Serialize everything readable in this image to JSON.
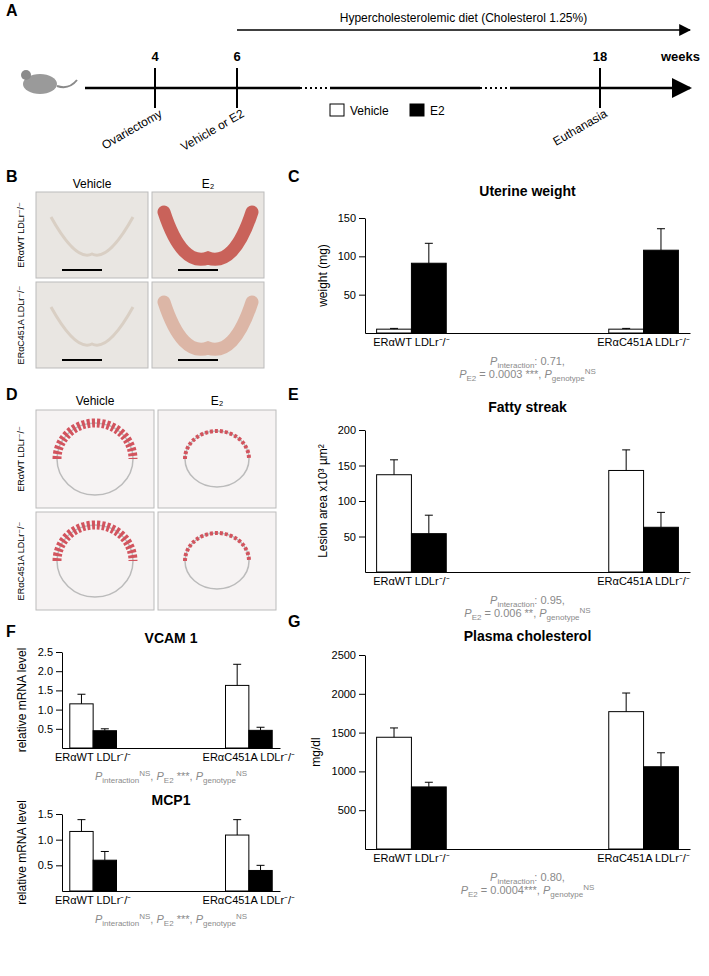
{
  "panels": [
    "A",
    "B",
    "C",
    "D",
    "E",
    "F",
    "G"
  ],
  "timeline": {
    "diet": {
      "label": "Hypercholesterolemic diet (Cholesterol 1.25%)",
      "start_week": 6
    },
    "unit": "weeks",
    "events": [
      {
        "week": 4,
        "label": "Ovariectomy"
      },
      {
        "week": 6,
        "label": "Vehicle or E2"
      },
      {
        "week": 18,
        "label": "Euthanasia"
      }
    ],
    "legend": [
      {
        "label": "Vehicle",
        "color": "#ffffff"
      },
      {
        "label": "E2",
        "color": "#000000"
      }
    ]
  },
  "uterus_photos": {
    "columns": [
      "Vehicle",
      "E₂"
    ],
    "rows": [
      "ERαWT LDLr⁻/⁻",
      "ERαC451A LDLr⁻/⁻"
    ]
  },
  "lesion_sections": {
    "columns": [
      "Vehicle",
      "E₂"
    ],
    "rows": [
      "ERαWT LDLr⁻/⁻",
      "ERαC451A LDLr⁻/⁻"
    ]
  },
  "chart_data": [
    {
      "type": "bar",
      "title": "Uterine weight",
      "y_label": "weight (mg)",
      "categories": [
        "ERαWT LDLr⁻/⁻",
        "ERαC451A LDLr⁻/⁻"
      ],
      "series": [
        {
          "color": "#ffffff",
          "values": [
            5,
            5
          ],
          "errors": [
            1,
            1
          ]
        },
        {
          "color": "#000000",
          "values": [
            91,
            108
          ],
          "errors": [
            26,
            28
          ]
        }
      ],
      "ylim": [
        0,
        150
      ],
      "yticks": [
        50,
        100,
        150
      ],
      "stats": [
        [
          {
            "symbol": "P",
            "sub": "interaction",
            "text": ": 0.71,"
          }
        ],
        [
          {
            "symbol": "P",
            "sub": "E2",
            "text": " = 0.0003 ***, "
          },
          {
            "symbol": "P",
            "sub": "genotype",
            "sup": "NS"
          }
        ]
      ]
    },
    {
      "type": "bar",
      "title": "Fatty streak",
      "y_label": "Lesion area x10³ µm²",
      "categories": [
        "ERαWT LDLr⁻/⁻",
        "ERαC451A LDLr⁻/⁻"
      ],
      "series": [
        {
          "color": "#ffffff",
          "values": [
            137,
            143
          ],
          "errors": [
            21,
            29
          ]
        },
        {
          "color": "#000000",
          "values": [
            54,
            63
          ],
          "errors": [
            26,
            21
          ]
        }
      ],
      "ylim": [
        0,
        200
      ],
      "yticks": [
        50,
        100,
        150,
        200
      ],
      "stats": [
        [
          {
            "symbol": "P",
            "sub": "interaction",
            "text": ": 0.95,"
          }
        ],
        [
          {
            "symbol": "P",
            "sub": "E2",
            "text": " = 0.006 **, "
          },
          {
            "symbol": "P",
            "sub": "genotype",
            "sup": "NS"
          }
        ]
      ]
    },
    {
      "type": "bar",
      "title": "VCAM 1",
      "y_label": "relative mRNA level",
      "categories": [
        "ERαWT LDLr⁻/⁻",
        "ERαC451A LDLr⁻/⁻"
      ],
      "series": [
        {
          "color": "#ffffff",
          "values": [
            1.15,
            1.63
          ],
          "errors": [
            0.25,
            0.55
          ]
        },
        {
          "color": "#000000",
          "values": [
            0.45,
            0.46
          ],
          "errors": [
            0.05,
            0.08
          ]
        }
      ],
      "ylim": [
        0,
        2.5
      ],
      "yticks": [
        0.5,
        {
          "value": 1,
          "label": "1.0"
        },
        1.5,
        {
          "value": 2,
          "label": "2.0"
        },
        2.5
      ],
      "stats": [
        [
          {
            "symbol": "P",
            "sub": "interaction",
            "sup": "NS",
            "text": ", "
          },
          {
            "symbol": "P",
            "sub": "E2",
            "text": " ***, "
          },
          {
            "symbol": "P",
            "sub": "genotype",
            "sup": "NS"
          }
        ]
      ]
    },
    {
      "type": "bar",
      "title": "MCP1",
      "y_label": "relative mRNA level",
      "categories": [
        "ERαWT LDLr⁻/⁻",
        "ERαC451A LDLr⁻/⁻"
      ],
      "series": [
        {
          "color": "#ffffff",
          "values": [
            1.16,
            1.09
          ],
          "errors": [
            0.23,
            0.3
          ]
        },
        {
          "color": "#000000",
          "values": [
            0.6,
            0.4
          ],
          "errors": [
            0.17,
            0.1
          ]
        }
      ],
      "ylim": [
        0,
        1.5
      ],
      "yticks": [
        0.5,
        {
          "value": 1,
          "label": "1.0"
        },
        1.5
      ],
      "stats": [
        [
          {
            "symbol": "P",
            "sub": "interaction",
            "sup": "NS",
            "text": ", "
          },
          {
            "symbol": "P",
            "sub": "E2",
            "text": " ***, "
          },
          {
            "symbol": "P",
            "sub": "genotype",
            "sup": "NS"
          }
        ]
      ]
    },
    {
      "type": "bar",
      "title": "Plasma cholesterol",
      "y_label": "mg/dl",
      "categories": [
        "ERαWT LDLr⁻/⁻",
        "ERαC451A LDLr⁻/⁻"
      ],
      "series": [
        {
          "color": "#ffffff",
          "values": [
            1440,
            1770
          ],
          "errors": [
            120,
            240
          ]
        },
        {
          "color": "#000000",
          "values": [
            800,
            1060
          ],
          "errors": [
            60,
            180
          ]
        }
      ],
      "ylim": [
        0,
        2500
      ],
      "yticks": [
        500,
        1000,
        1500,
        2000,
        2500
      ],
      "stats": [
        [
          {
            "symbol": "P",
            "sub": "interaction",
            "text": ": 0.80,"
          }
        ],
        [
          {
            "symbol": "P",
            "sub": "E2",
            "text": " = 0.0004***, "
          },
          {
            "symbol": "P",
            "sub": "genotype",
            "sup": "NS"
          }
        ]
      ]
    }
  ]
}
